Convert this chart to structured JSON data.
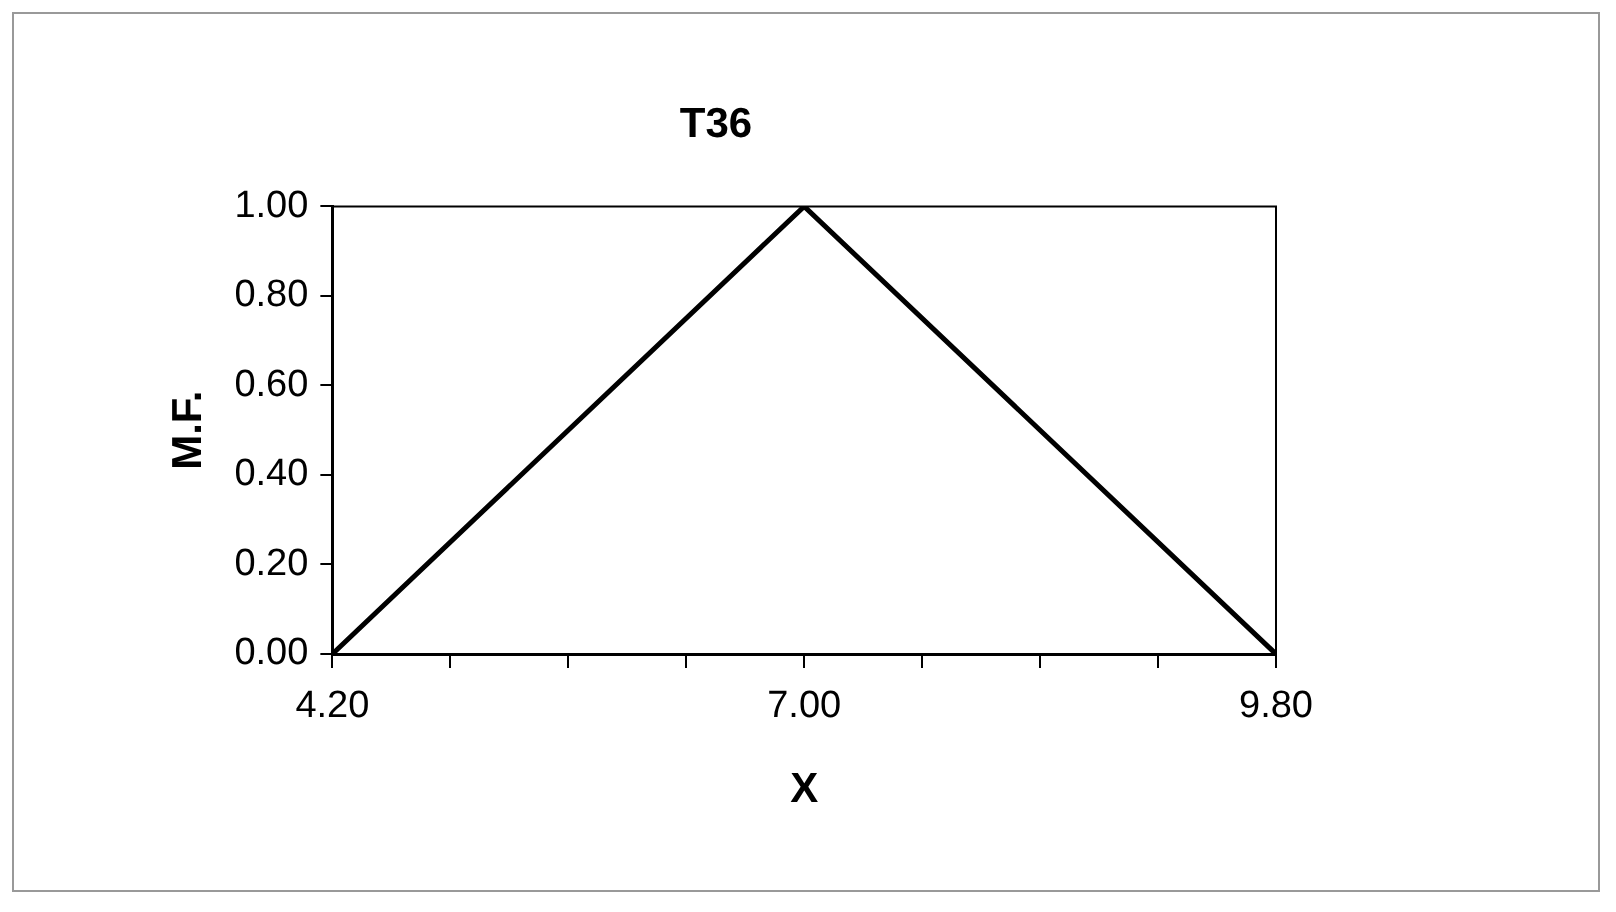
{
  "chart_data": {
    "type": "line",
    "title": "T36",
    "xlabel": "X",
    "ylabel": "M.F.",
    "x": [
      4.2,
      7.0,
      9.8
    ],
    "values": [
      0,
      1,
      0
    ],
    "color": "#000000",
    "xlim": [
      4.2,
      9.8
    ],
    "xticks": [
      {
        "value": 4.2,
        "label": "4.20"
      },
      {
        "value": 4.9,
        "label": null
      },
      {
        "value": 5.6,
        "label": null
      },
      {
        "value": 6.3,
        "label": null
      },
      {
        "value": 7.0,
        "label": "7.00"
      },
      {
        "value": 7.7,
        "label": null
      },
      {
        "value": 8.4,
        "label": null
      },
      {
        "value": 9.1,
        "label": null
      },
      {
        "value": 9.8,
        "label": "9.80"
      }
    ],
    "ylim": [
      0,
      1
    ],
    "yticks": [
      {
        "value": 0,
        "label": "0.00"
      },
      {
        "value": 0.2,
        "label": "0.20"
      },
      {
        "value": 0.4,
        "label": "0.40"
      },
      {
        "value": 0.6,
        "label": "0.60"
      },
      {
        "value": 0.8,
        "label": "0.80"
      },
      {
        "value": 1,
        "label": "1.00"
      }
    ],
    "grid": false,
    "legend": false,
    "marker": "none",
    "line_style": "solid"
  }
}
